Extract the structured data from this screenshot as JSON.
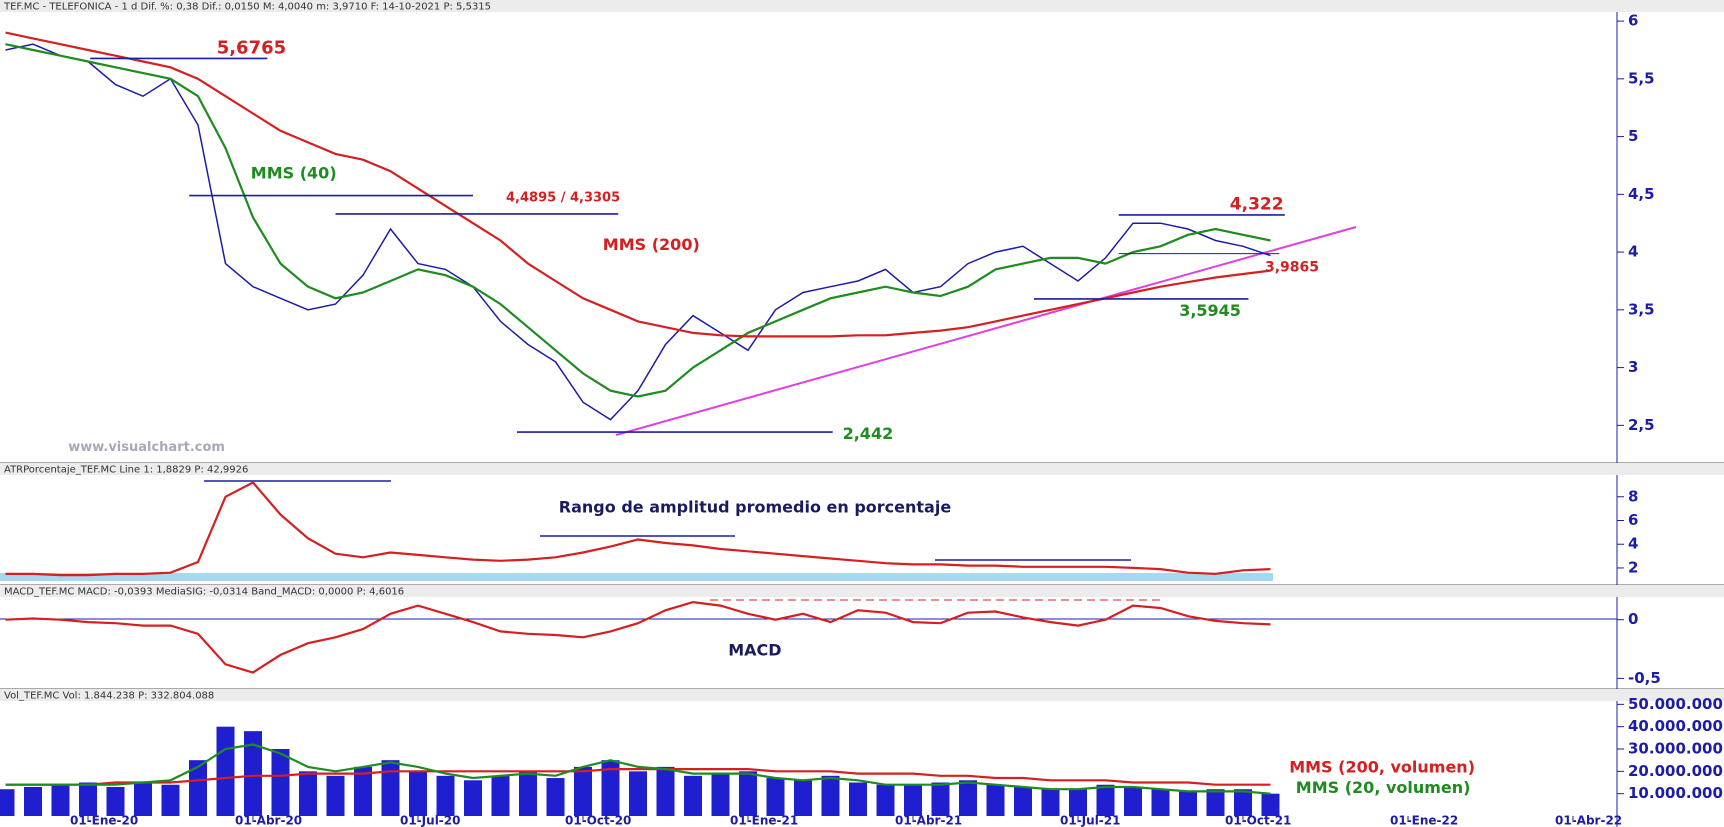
{
  "chart_data": [
    {
      "type": "line",
      "header": "TEF.MC - TELEFONICA -  1 d  Dif. %: 0,38  Dif.: 0,0150  M: 4,0040  m: 3,9710  F: 14-10-2021  P: 5,5315",
      "ylim": [
        2.2,
        6.07
      ],
      "yticks": [
        {
          "value": 2.5,
          "label": "2,5"
        },
        3,
        {
          "value": 3.5,
          "label": "3,5"
        },
        4,
        {
          "value": 4.5,
          "label": "4,5"
        },
        5,
        {
          "value": 5.5,
          "label": "5,5"
        },
        6
      ],
      "series": [
        {
          "color": "#1c1ca8",
          "values": [
            5.75,
            5.8,
            5.7,
            5.65,
            5.45,
            5.35,
            5.5,
            5.1,
            3.9,
            3.7,
            3.6,
            3.5,
            3.55,
            3.8,
            4.2,
            3.9,
            3.85,
            3.7,
            3.4,
            3.2,
            3.05,
            2.7,
            2.55,
            2.8,
            3.2,
            3.45,
            3.3,
            3.15,
            3.5,
            3.65,
            3.7,
            3.75,
            3.85,
            3.65,
            3.7,
            3.9,
            4.0,
            4.05,
            3.9,
            3.75,
            3.95,
            4.25,
            4.25,
            4.2,
            4.1,
            4.05,
            3.97
          ]
        },
        {
          "name": "MMS (40)",
          "color": "#1e8c1e",
          "values": [
            5.8,
            5.75,
            5.7,
            5.65,
            5.6,
            5.55,
            5.5,
            5.35,
            4.9,
            4.3,
            3.9,
            3.7,
            3.6,
            3.65,
            3.75,
            3.85,
            3.8,
            3.7,
            3.55,
            3.35,
            3.15,
            2.95,
            2.8,
            2.75,
            2.8,
            3.0,
            3.15,
            3.3,
            3.4,
            3.5,
            3.6,
            3.65,
            3.7,
            3.65,
            3.62,
            3.7,
            3.85,
            3.9,
            3.95,
            3.95,
            3.9,
            4.0,
            4.05,
            4.15,
            4.2,
            4.15,
            4.1
          ]
        },
        {
          "name": "MMS (200)",
          "color": "#d42020",
          "values": [
            5.9,
            5.85,
            5.8,
            5.75,
            5.7,
            5.65,
            5.6,
            5.5,
            5.35,
            5.2,
            5.05,
            4.95,
            4.85,
            4.8,
            4.7,
            4.55,
            4.4,
            4.25,
            4.1,
            3.9,
            3.75,
            3.6,
            3.5,
            3.4,
            3.35,
            3.3,
            3.28,
            3.27,
            3.27,
            3.27,
            3.27,
            3.28,
            3.28,
            3.3,
            3.32,
            3.35,
            3.4,
            3.45,
            3.5,
            3.55,
            3.6,
            3.65,
            3.7,
            3.74,
            3.78,
            3.81,
            3.84
          ]
        }
      ],
      "levels": [
        5.6765,
        4.4895,
        4.3305,
        4.322,
        3.9865,
        3.5945,
        2.442
      ],
      "level_color": "#1c1ca8",
      "annotations": [
        {
          "text": "5,6765",
          "color": "#d42020"
        },
        {
          "text": "4,4895 / 4,3305",
          "color": "#d42020"
        },
        {
          "text": "4,322",
          "color": "#d42020"
        },
        {
          "text": "3,9865",
          "color": "#d42020"
        },
        {
          "text": "3,5945",
          "color": "#1e8c1e"
        },
        {
          "text": "2,442",
          "color": "#1e8c1e"
        },
        {
          "text": "www.visualchart.com",
          "color": "#a8a8b8"
        }
      ]
    },
    {
      "type": "line",
      "header": "ATRPorcentaje_TEF.MC  Line 1: 1,8829  P: 42,9926",
      "annotation": "Rango de amplitud promedio en porcentaje",
      "ylim": [
        0.9,
        9.75
      ],
      "yticks": [
        2,
        4,
        6,
        8
      ],
      "series": [
        {
          "color": "#d42020",
          "values": [
            1.5,
            1.5,
            1.4,
            1.4,
            1.5,
            1.5,
            1.6,
            2.5,
            8.0,
            9.2,
            6.5,
            4.5,
            3.2,
            2.9,
            3.3,
            3.1,
            2.9,
            2.7,
            2.6,
            2.7,
            2.9,
            3.3,
            3.8,
            4.4,
            4.1,
            3.9,
            3.6,
            3.4,
            3.2,
            3.0,
            2.8,
            2.6,
            2.4,
            2.3,
            2.3,
            2.2,
            2.2,
            2.1,
            2.1,
            2.1,
            2.1,
            2.0,
            1.9,
            1.6,
            1.5,
            1.8,
            1.9
          ]
        }
      ]
    },
    {
      "type": "line",
      "header": "MACD_TEF.MC  MACD: -0,0393  MediaSIG: -0,0314  Band_MACD: 0,0000  P: 4,6016",
      "ylim": [
        -0.565,
        0.185
      ],
      "yticks": [
        0,
        {
          "value": -0.5,
          "label": "-0,5"
        }
      ],
      "series": [
        {
          "name": "MACD",
          "color": "#d42020",
          "values": [
            0.0,
            0.01,
            0.0,
            -0.02,
            -0.03,
            -0.05,
            -0.05,
            -0.12,
            -0.38,
            -0.45,
            -0.3,
            -0.2,
            -0.15,
            -0.08,
            0.05,
            0.12,
            0.05,
            -0.02,
            -0.1,
            -0.12,
            -0.13,
            -0.15,
            -0.1,
            -0.03,
            0.08,
            0.15,
            0.12,
            0.05,
            0.0,
            0.05,
            -0.02,
            0.08,
            0.06,
            -0.02,
            -0.03,
            0.06,
            0.07,
            0.02,
            -0.02,
            -0.05,
            0.0,
            0.12,
            0.1,
            0.03,
            -0.01,
            -0.03,
            -0.04
          ]
        }
      ]
    },
    {
      "type": "bar",
      "header": "Vol_TEF.MC  Vol: 1.844.238  P: 332.804.088",
      "categories": [
        null,
        null,
        null,
        "01-Ene-20",
        null,
        null,
        null,
        null,
        null,
        "01-Abr-20",
        null,
        null,
        null,
        null,
        null,
        "01-Jul-20",
        null,
        null,
        null,
        null,
        null,
        "01-Oct-20",
        null,
        null,
        null,
        null,
        null,
        "01-Ene-21",
        null,
        null,
        null,
        null,
        null,
        "01-Abr-21",
        null,
        null,
        null,
        null,
        null,
        "01-Jul-21",
        null,
        null,
        null,
        null,
        null,
        "01-Oct-21",
        null,
        null,
        null,
        null,
        null,
        "01-Ene-22",
        null,
        null,
        null,
        null,
        null,
        "01-Abr-22"
      ],
      "ylim": [
        0,
        51500000
      ],
      "yticks": [
        {
          "value": 10000000,
          "label": "10.000.000"
        },
        {
          "value": 20000000,
          "label": "20.000.000"
        },
        {
          "value": 30000000,
          "label": "30.000.000"
        },
        {
          "value": 40000000,
          "label": "40.000.000"
        },
        {
          "value": 50000000,
          "label": "50.000.000"
        }
      ],
      "series": [
        {
          "color": "#1f1fd0",
          "values": [
            12000000,
            13000000,
            14000000,
            15000000,
            13000000,
            15000000,
            14000000,
            25000000,
            40000000,
            38000000,
            30000000,
            20000000,
            18000000,
            22000000,
            25000000,
            20000000,
            18000000,
            16000000,
            18000000,
            20000000,
            17000000,
            22000000,
            25000000,
            20000000,
            22000000,
            18000000,
            19000000,
            20000000,
            17000000,
            16000000,
            18000000,
            15000000,
            14000000,
            14000000,
            15000000,
            16000000,
            14000000,
            13000000,
            12000000,
            12000000,
            14000000,
            13000000,
            12000000,
            11000000,
            12000000,
            12000000,
            10000000,
            null,
            null,
            null,
            null,
            null,
            null,
            null,
            null,
            null,
            null,
            null
          ]
        },
        {
          "name": "MMS (200, volumen)",
          "color": "#d42020",
          "values": [
            14000000,
            14000000,
            14000000,
            14000000,
            15000000,
            15000000,
            15000000,
            16000000,
            17000000,
            18000000,
            18000000,
            19000000,
            19000000,
            19000000,
            20000000,
            20000000,
            20000000,
            20000000,
            20000000,
            20000000,
            20000000,
            20000000,
            21000000,
            21000000,
            21000000,
            21000000,
            21000000,
            21000000,
            20000000,
            20000000,
            20000000,
            19000000,
            19000000,
            19000000,
            18000000,
            18000000,
            17000000,
            17000000,
            16000000,
            16000000,
            16000000,
            15000000,
            15000000,
            15000000,
            14000000,
            14000000,
            14000000,
            null,
            null,
            null,
            null,
            null,
            null,
            null,
            null,
            null,
            null,
            null
          ]
        },
        {
          "name": "MMS (20, volumen)",
          "color": "#1e8c1e",
          "values": [
            14000000,
            14000000,
            14000000,
            14000000,
            14000000,
            15000000,
            16000000,
            22000000,
            30000000,
            32000000,
            28000000,
            22000000,
            20000000,
            22000000,
            24000000,
            22000000,
            19000000,
            17000000,
            18000000,
            19000000,
            18000000,
            22000000,
            25000000,
            22000000,
            21000000,
            19000000,
            19000000,
            19000000,
            17000000,
            16000000,
            17000000,
            16000000,
            14000000,
            14000000,
            14000000,
            15000000,
            14000000,
            13000000,
            12000000,
            12000000,
            13000000,
            13000000,
            12000000,
            11000000,
            11000000,
            11000000,
            10000000,
            null,
            null,
            null,
            null,
            null,
            null,
            null,
            null,
            null,
            null,
            null
          ]
        }
      ]
    }
  ]
}
